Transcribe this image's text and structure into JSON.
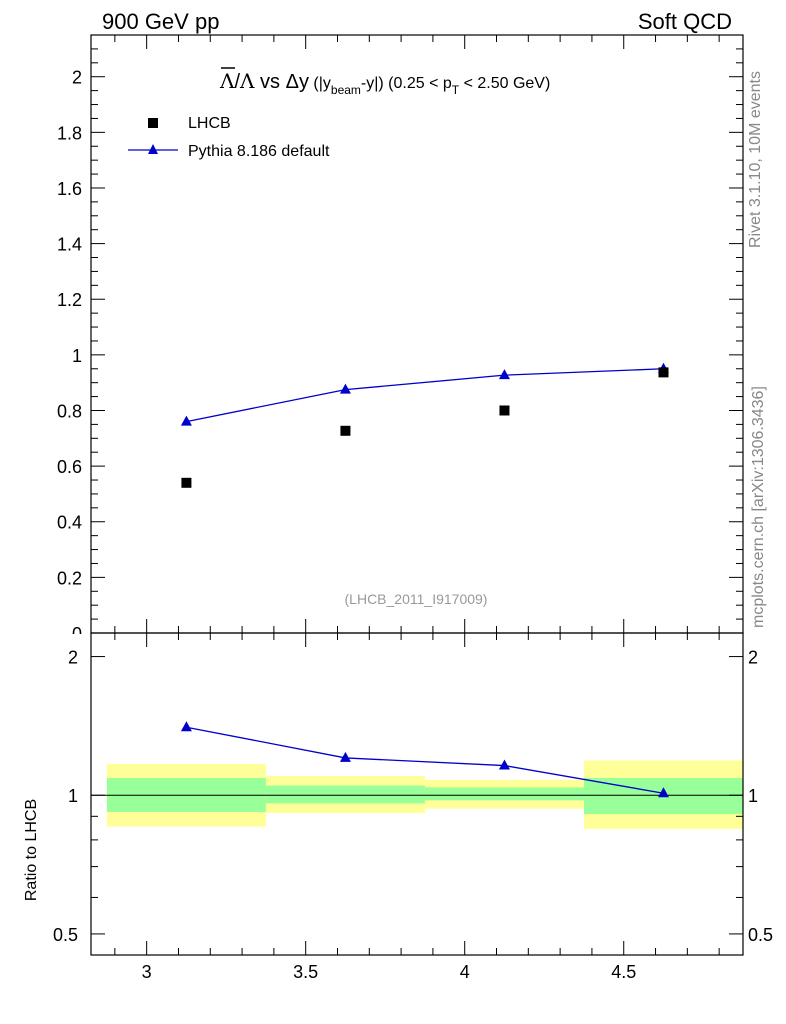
{
  "header": {
    "left": "900 GeV pp",
    "right": "Soft QCD"
  },
  "side_labels": {
    "upper": "Rivet 3.1.10,  10M events",
    "lower": "mcplots.cern.ch [arXiv:1306.3436]"
  },
  "title": {
    "antilambda": "Λ",
    "slash": "/",
    "lambda": "Λ",
    "vs": " vs ",
    "delta_y": "Δy",
    "part1": " (|y",
    "sub_beam": "beam",
    "part2": "-y|) (0.25 < p",
    "sub_T": "T",
    "part3": " < 2.50 GeV)"
  },
  "legend": {
    "data": "LHCB",
    "mc": "Pythia 8.186 default"
  },
  "watermark": "(LHCB_2011_I917009)",
  "ratio_ylabel": "Ratio to LHCB",
  "colors": {
    "mc": "#0000cc",
    "data": "#000000",
    "band_inner": "#99ff99",
    "band_outer": "#ffff99"
  },
  "chart_data": [
    {
      "type": "scatter",
      "xlim": [
        2.825,
        4.875
      ],
      "ylim": [
        0,
        2.15
      ],
      "x_ticks": [
        "3",
        "3.5",
        "4",
        "4.5"
      ],
      "y_ticks": [
        "0",
        "0.2",
        "0.4",
        "0.6",
        "0.8",
        "1",
        "1.2",
        "1.4",
        "1.6",
        "1.8",
        "2"
      ],
      "series": [
        {
          "name": "LHCB",
          "x": [
            3.125,
            3.625,
            4.125,
            4.625
          ],
          "y": [
            0.54,
            0.727,
            0.8,
            0.937
          ]
        },
        {
          "name": "Pythia 8.186 default",
          "x": [
            3.125,
            3.625,
            4.125,
            4.625
          ],
          "y": [
            0.76,
            0.875,
            0.927,
            0.95
          ]
        }
      ]
    },
    {
      "type": "line",
      "ylabel": "Ratio to LHCB",
      "xlim": [
        2.825,
        4.875
      ],
      "ylim": [
        0.45,
        2.25
      ],
      "log_y": true,
      "x_ticks": [
        "3",
        "3.5",
        "4",
        "4.5"
      ],
      "y_ticks": [
        "0.5",
        "1",
        "2"
      ],
      "bins": [
        [
          2.875,
          3.375
        ],
        [
          3.375,
          3.875
        ],
        [
          3.875,
          4.375
        ],
        [
          4.375,
          4.875
        ]
      ],
      "band_inner": [
        [
          0.92,
          1.09
        ],
        [
          0.96,
          1.05
        ],
        [
          0.975,
          1.04
        ],
        [
          0.91,
          1.09
        ]
      ],
      "band_outer": [
        [
          0.855,
          1.17
        ],
        [
          0.915,
          1.1
        ],
        [
          0.935,
          1.08
        ],
        [
          0.845,
          1.19
        ]
      ],
      "series": [
        {
          "name": "Pythia 8.186 default",
          "x": [
            3.125,
            3.625,
            4.125,
            4.625
          ],
          "y": [
            1.405,
            1.205,
            1.16,
            1.01
          ]
        }
      ]
    }
  ]
}
